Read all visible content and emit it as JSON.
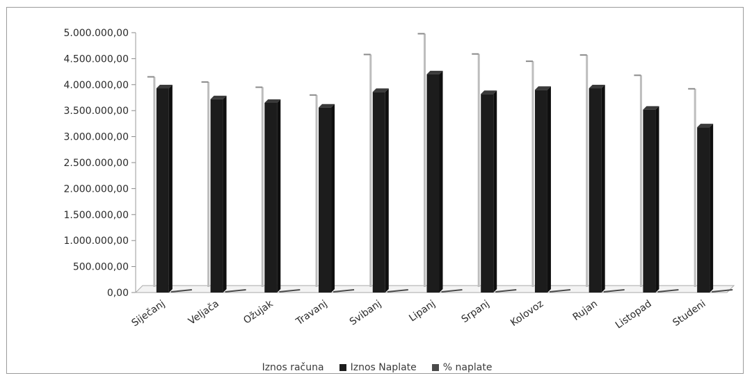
{
  "chart_data": {
    "type": "bar",
    "categories": [
      "Siječanj",
      "Veljača",
      "Ožujak",
      "Travanj",
      "Svibanj",
      "Lipanj",
      "Srpanj",
      "Kolovoz",
      "Rujan",
      "Listopad",
      "Studeni"
    ],
    "series": [
      {
        "name": "Iznos računa",
        "values": [
          4150000,
          4050000,
          3950000,
          3800000,
          4580000,
          4980000,
          4590000,
          4450000,
          4570000,
          4180000,
          3920000
        ],
        "color": "#bdbdbd"
      },
      {
        "name": "Iznos Naplate",
        "values": [
          3930000,
          3720000,
          3650000,
          3560000,
          3860000,
          4200000,
          3820000,
          3900000,
          3930000,
          3520000,
          3180000
        ],
        "color": "#1c1c1c"
      },
      {
        "name": "% naplate",
        "values": [
          0,
          0,
          0,
          0,
          0,
          0,
          0,
          0,
          0,
          0,
          0
        ],
        "color": "#4a4a4a"
      }
    ],
    "yticks": [
      "0,00",
      "500.000,00",
      "1.000.000,00",
      "1.500.000,00",
      "2.000.000,00",
      "2.500.000,00",
      "3.000.000,00",
      "3.500.000,00",
      "4.000.000,00",
      "4.500.000,00",
      "5.000.000,00"
    ],
    "ylim": [
      0,
      5000000
    ],
    "grid": false,
    "legend_position": "bottom"
  }
}
